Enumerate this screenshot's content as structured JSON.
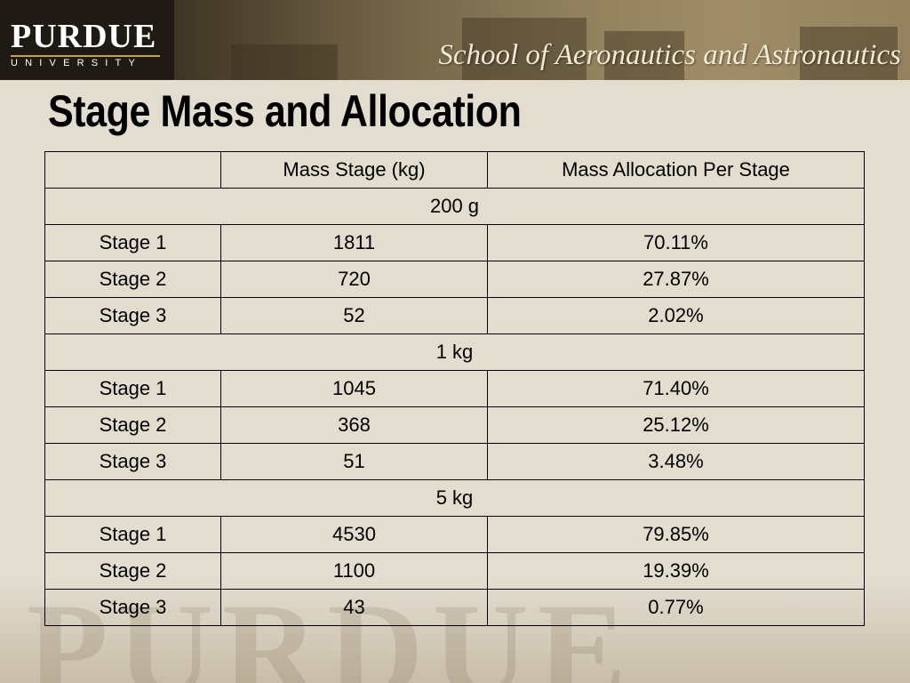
{
  "header": {
    "logo_word": "PURDUE",
    "logo_sub": "UNIVERSITY",
    "school": "School of Aeronautics and Astronautics"
  },
  "title": "Stage Mass and Allocation",
  "table": {
    "headers": [
      "",
      "Mass Stage (kg)",
      "Mass Allocation Per Stage"
    ],
    "groups": [
      {
        "label": "200 g",
        "rows": [
          [
            "Stage 1",
            "1811",
            "70.11%"
          ],
          [
            "Stage 2",
            "720",
            "27.87%"
          ],
          [
            "Stage 3",
            "52",
            "2.02%"
          ]
        ]
      },
      {
        "label": "1 kg",
        "rows": [
          [
            "Stage 1",
            "1045",
            "71.40%"
          ],
          [
            "Stage 2",
            "368",
            "25.12%"
          ],
          [
            "Stage 3",
            "51",
            "3.48%"
          ]
        ]
      },
      {
        "label": "5 kg",
        "rows": [
          [
            "Stage 1",
            "4530",
            "79.85%"
          ],
          [
            "Stage 2",
            "1100",
            "19.39%"
          ],
          [
            "Stage 3",
            "43",
            "0.77%"
          ]
        ]
      }
    ]
  },
  "watermark": "PURDUE"
}
